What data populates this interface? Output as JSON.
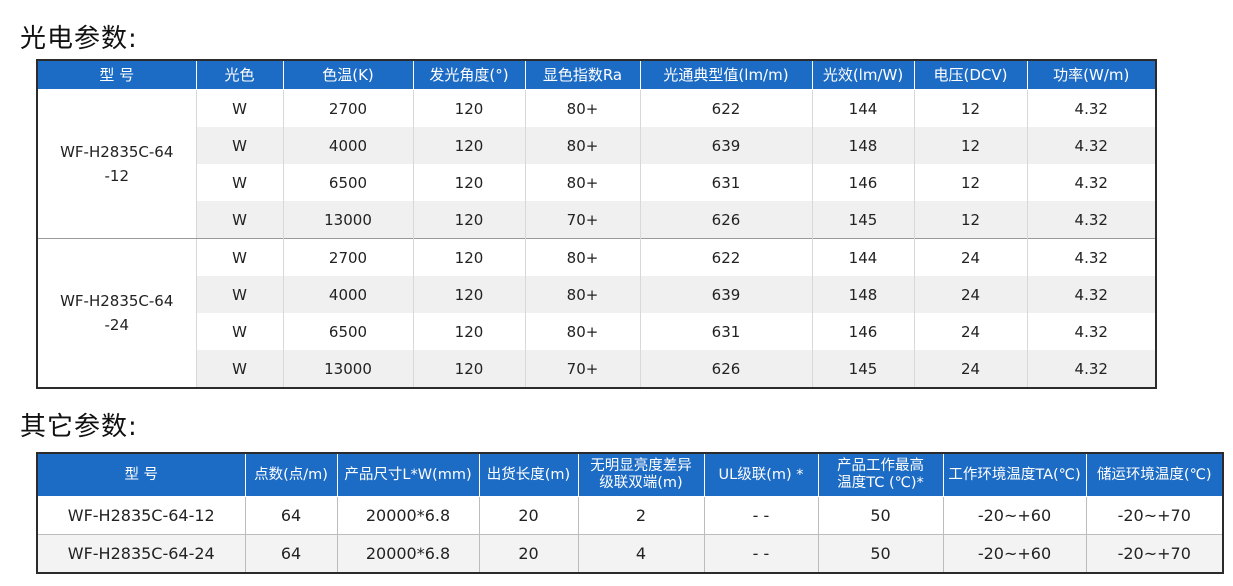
{
  "section1": {
    "title": "光电参数:",
    "headers": [
      "型 号",
      "光色",
      "色温(K)",
      "发光角度(°)",
      "显色指数Ra",
      "光通典型值(lm/m)",
      "光效(lm/W)",
      "电压(DCV)",
      "功率(W/m)"
    ],
    "groups": [
      {
        "model_line1": "WF-H2835C-64",
        "model_line2": "-12",
        "rows": [
          [
            "W",
            "2700",
            "120",
            "80+",
            "622",
            "144",
            "12",
            "4.32"
          ],
          [
            "W",
            "4000",
            "120",
            "80+",
            "639",
            "148",
            "12",
            "4.32"
          ],
          [
            "W",
            "6500",
            "120",
            "80+",
            "631",
            "146",
            "12",
            "4.32"
          ],
          [
            "W",
            "13000",
            "120",
            "70+",
            "626",
            "145",
            "12",
            "4.32"
          ]
        ]
      },
      {
        "model_line1": "WF-H2835C-64",
        "model_line2": "-24",
        "rows": [
          [
            "W",
            "2700",
            "120",
            "80+",
            "622",
            "144",
            "24",
            "4.32"
          ],
          [
            "W",
            "4000",
            "120",
            "80+",
            "639",
            "148",
            "24",
            "4.32"
          ],
          [
            "W",
            "6500",
            "120",
            "80+",
            "631",
            "146",
            "24",
            "4.32"
          ],
          [
            "W",
            "13000",
            "120",
            "70+",
            "626",
            "145",
            "24",
            "4.32"
          ]
        ]
      }
    ]
  },
  "section2": {
    "title": "其它参数:",
    "headers": [
      {
        "line1": "型 号",
        "line2": ""
      },
      {
        "line1": "点数(点/m)",
        "line2": ""
      },
      {
        "line1": "产品尺寸L*W(mm)",
        "line2": ""
      },
      {
        "line1": "出货长度(m)",
        "line2": ""
      },
      {
        "line1": "无明显亮度差异",
        "line2": "级联双端(m)"
      },
      {
        "line1": "UL级联(m) *",
        "line2": ""
      },
      {
        "line1": "产品工作最高",
        "line2": "温度TC (℃)*"
      },
      {
        "line1": "工作环境温度TA(℃)",
        "line2": ""
      },
      {
        "line1": "储运环境温度(℃)",
        "line2": ""
      }
    ],
    "rows": [
      [
        "WF-H2835C-64-12",
        "64",
        "20000*6.8",
        "20",
        "2",
        "- -",
        "50",
        "-20~+60",
        "-20~+70"
      ],
      [
        "WF-H2835C-64-24",
        "64",
        "20000*6.8",
        "20",
        "4",
        "- -",
        "50",
        "-20~+60",
        "-20~+70"
      ]
    ]
  },
  "colors": {
    "header_bg": "#1c6bc4",
    "header_text": "#ffffff",
    "stripe": "#f0f0f0"
  }
}
